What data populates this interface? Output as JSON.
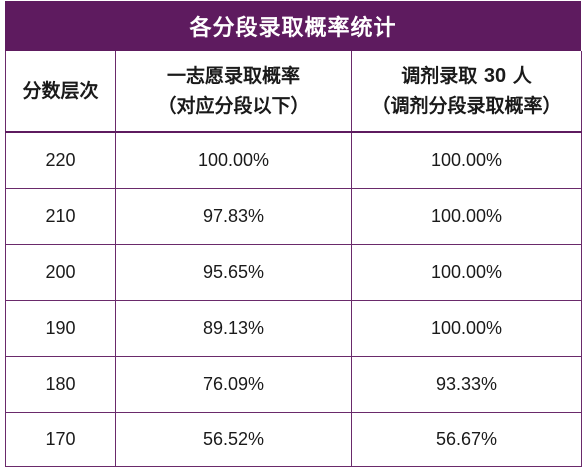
{
  "title": "各分段录取概率统计",
  "headers": {
    "col1": "分数层次",
    "col2_line1": "一志愿录取概率",
    "col2_line2": "（对应分段以下）",
    "col3_line1_pre": "调剂录取 ",
    "col3_line1_num": "30",
    "col3_line1_post": " 人",
    "col3_line2": "（调剂分段录取概率）"
  },
  "rows": [
    {
      "score": "220",
      "first_choice": "100.00%",
      "adjusted": "100.00%"
    },
    {
      "score": "210",
      "first_choice": "97.83%",
      "adjusted": "100.00%"
    },
    {
      "score": "200",
      "first_choice": "95.65%",
      "adjusted": "100.00%"
    },
    {
      "score": "190",
      "first_choice": "89.13%",
      "adjusted": "100.00%"
    },
    {
      "score": "180",
      "first_choice": "76.09%",
      "adjusted": "93.33%"
    },
    {
      "score": "170",
      "first_choice": "56.52%",
      "adjusted": "56.67%"
    }
  ],
  "colors": {
    "header_bg": "#5e1b5f",
    "border": "#6a2a6b"
  }
}
